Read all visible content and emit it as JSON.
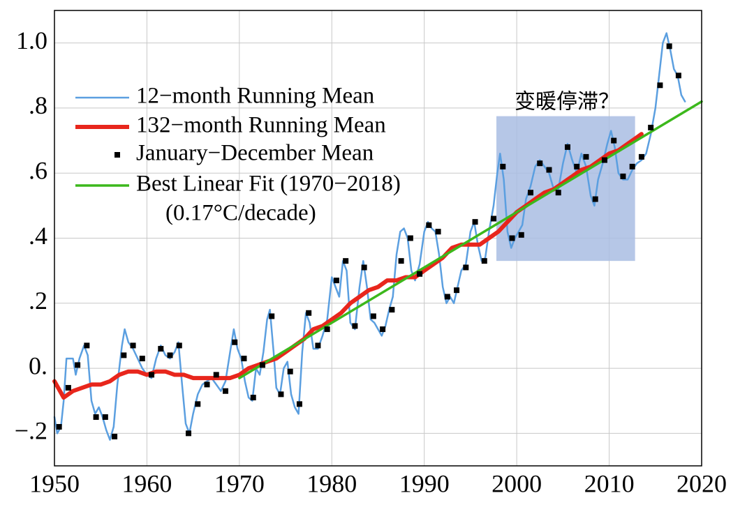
{
  "chart_data": {
    "type": "line",
    "xlim": [
      1950,
      2020
    ],
    "xticks": [
      1950,
      1960,
      1970,
      1980,
      1990,
      2000,
      2010,
      2020
    ],
    "ylim": [
      -0.3,
      1.1
    ],
    "yticks": [
      {
        "value": -0.2,
        "label": "−.2"
      },
      {
        "value": 0,
        "label": "0."
      },
      {
        "value": 0.2,
        "label": ".2"
      },
      {
        "value": 0.4,
        "label": ".4"
      },
      {
        "value": 0.6,
        "label": ".6"
      },
      {
        "value": 0.8,
        "label": ".8"
      },
      {
        "value": 1.0,
        "label": "1.0"
      }
    ],
    "grid": true,
    "legend_position": "upper left",
    "highlight": {
      "x": [
        1997.8,
        2012.8
      ],
      "y": [
        0.33,
        0.775
      ],
      "color": "#a9bde3"
    },
    "annotations": [
      "变暖停滞？",
      "(0.17°C/decade)"
    ],
    "series": [
      {
        "name": "12−month Running Mean",
        "type": "line",
        "color": "#5b9fe0",
        "x": [
          1950.0,
          1950.3,
          1950.7,
          1951.0,
          1951.3,
          1951.7,
          1952.0,
          1952.3,
          1952.7,
          1953.2,
          1953.6,
          1954.0,
          1954.4,
          1954.8,
          1955.2,
          1955.6,
          1956.0,
          1956.4,
          1956.8,
          1957.3,
          1957.6,
          1958.0,
          1958.5,
          1959.0,
          1959.5,
          1960.0,
          1960.5,
          1961.0,
          1961.5,
          1962.0,
          1962.5,
          1963.0,
          1963.4,
          1963.8,
          1964.2,
          1964.6,
          1965.0,
          1965.5,
          1966.0,
          1966.5,
          1967.0,
          1967.5,
          1968.0,
          1968.5,
          1969.0,
          1969.4,
          1969.8,
          1970.2,
          1970.6,
          1971.0,
          1971.4,
          1971.8,
          1972.2,
          1972.6,
          1973.0,
          1973.3,
          1973.7,
          1974.0,
          1974.4,
          1974.8,
          1975.2,
          1975.6,
          1976.0,
          1976.4,
          1976.8,
          1977.2,
          1977.6,
          1978.0,
          1978.5,
          1979.0,
          1979.5,
          1980.0,
          1980.4,
          1980.8,
          1981.2,
          1981.6,
          1982.0,
          1982.5,
          1983.0,
          1983.4,
          1983.8,
          1984.2,
          1984.6,
          1985.0,
          1985.4,
          1985.8,
          1986.2,
          1986.6,
          1987.0,
          1987.4,
          1987.8,
          1988.2,
          1988.6,
          1989.0,
          1989.5,
          1990.0,
          1990.4,
          1990.8,
          1991.2,
          1991.6,
          1992.0,
          1992.4,
          1992.8,
          1993.2,
          1993.6,
          1994.0,
          1994.5,
          1995.0,
          1995.4,
          1995.8,
          1996.2,
          1996.6,
          1997.0,
          1997.5,
          1997.9,
          1998.2,
          1998.6,
          1999.0,
          1999.4,
          1999.8,
          2000.2,
          2000.6,
          2001.0,
          2001.5,
          2002.0,
          2002.5,
          2003.0,
          2003.5,
          2004.0,
          2004.5,
          2005.0,
          2005.5,
          2006.0,
          2006.5,
          2007.0,
          2007.5,
          2008.0,
          2008.4,
          2008.8,
          2009.3,
          2009.8,
          2010.2,
          2010.6,
          2011.0,
          2011.5,
          2012.0,
          2012.5,
          2013.0,
          2013.5,
          2014.0,
          2014.5,
          2015.0,
          2015.4,
          2015.8,
          2016.2,
          2016.6,
          2017.0,
          2017.4,
          2017.8,
          2018.2
        ],
        "values": [
          -0.15,
          -0.2,
          -0.18,
          -0.1,
          0.03,
          0.03,
          0.03,
          -0.02,
          0.03,
          0.07,
          0.04,
          -0.1,
          -0.14,
          -0.12,
          -0.15,
          -0.19,
          -0.22,
          -0.18,
          -0.05,
          0.07,
          0.12,
          0.08,
          0.06,
          0.03,
          0.0,
          -0.02,
          -0.03,
          0.03,
          0.07,
          0.04,
          0.03,
          0.05,
          0.08,
          -0.05,
          -0.17,
          -0.2,
          -0.14,
          -0.08,
          -0.05,
          -0.04,
          -0.03,
          -0.05,
          -0.07,
          -0.04,
          0.05,
          0.12,
          0.06,
          0.03,
          -0.04,
          -0.09,
          -0.1,
          0.0,
          -0.02,
          0.05,
          0.15,
          0.18,
          0.05,
          -0.06,
          -0.08,
          0.0,
          0.02,
          -0.08,
          -0.12,
          -0.14,
          0.05,
          0.17,
          0.14,
          0.06,
          0.06,
          0.1,
          0.15,
          0.28,
          0.25,
          0.22,
          0.33,
          0.3,
          0.14,
          0.12,
          0.25,
          0.33,
          0.25,
          0.15,
          0.14,
          0.12,
          0.1,
          0.13,
          0.18,
          0.22,
          0.35,
          0.42,
          0.43,
          0.4,
          0.3,
          0.27,
          0.32,
          0.42,
          0.45,
          0.43,
          0.42,
          0.35,
          0.25,
          0.2,
          0.22,
          0.2,
          0.25,
          0.3,
          0.32,
          0.42,
          0.45,
          0.38,
          0.33,
          0.34,
          0.42,
          0.5,
          0.6,
          0.66,
          0.58,
          0.42,
          0.37,
          0.4,
          0.42,
          0.44,
          0.52,
          0.56,
          0.62,
          0.64,
          0.62,
          0.6,
          0.55,
          0.55,
          0.63,
          0.69,
          0.64,
          0.6,
          0.66,
          0.62,
          0.53,
          0.5,
          0.58,
          0.63,
          0.69,
          0.73,
          0.68,
          0.6,
          0.58,
          0.58,
          0.61,
          0.63,
          0.64,
          0.66,
          0.72,
          0.8,
          0.9,
          1.0,
          1.03,
          0.98,
          0.92,
          0.9,
          0.84,
          0.82
        ]
      },
      {
        "name": "132−month Running Mean",
        "type": "line",
        "color": "#e8261c",
        "x": [
          1950,
          1951,
          1952,
          1953,
          1954,
          1955,
          1956,
          1957,
          1958,
          1959,
          1960,
          1961,
          1962,
          1963,
          1964,
          1965,
          1966,
          1967,
          1968,
          1969,
          1970,
          1971,
          1972,
          1973,
          1974,
          1975,
          1976,
          1977,
          1978,
          1979,
          1980,
          1981,
          1982,
          1983,
          1984,
          1985,
          1986,
          1987,
          1988,
          1989,
          1990,
          1991,
          1992,
          1993,
          1994,
          1995,
          1996,
          1997,
          1998,
          1999,
          2000,
          2001,
          2002,
          2003,
          2004,
          2005,
          2006,
          2007,
          2008,
          2009,
          2010,
          2011,
          2012,
          2013,
          2013.5
        ],
        "values": [
          -0.04,
          -0.09,
          -0.07,
          -0.06,
          -0.05,
          -0.05,
          -0.04,
          -0.02,
          -0.01,
          -0.01,
          -0.02,
          -0.01,
          -0.01,
          -0.02,
          -0.02,
          -0.03,
          -0.03,
          -0.03,
          -0.03,
          -0.03,
          -0.02,
          0.0,
          0.01,
          0.02,
          0.03,
          0.05,
          0.07,
          0.09,
          0.12,
          0.13,
          0.15,
          0.17,
          0.2,
          0.22,
          0.24,
          0.25,
          0.27,
          0.27,
          0.28,
          0.28,
          0.3,
          0.32,
          0.34,
          0.37,
          0.38,
          0.38,
          0.38,
          0.4,
          0.42,
          0.45,
          0.48,
          0.5,
          0.52,
          0.54,
          0.55,
          0.57,
          0.59,
          0.61,
          0.62,
          0.64,
          0.66,
          0.67,
          0.69,
          0.71,
          0.72
        ]
      },
      {
        "name": "January−December Mean",
        "type": "scatter",
        "color": "#000000",
        "x": [
          1950.5,
          1951.5,
          1952.5,
          1953.5,
          1954.5,
          1955.5,
          1956.5,
          1957.5,
          1958.5,
          1959.5,
          1960.5,
          1961.5,
          1962.5,
          1963.5,
          1964.5,
          1965.5,
          1966.5,
          1967.5,
          1968.5,
          1969.5,
          1970.5,
          1971.5,
          1972.5,
          1973.5,
          1974.5,
          1975.5,
          1976.5,
          1977.5,
          1978.5,
          1979.5,
          1980.5,
          1981.5,
          1982.5,
          1983.5,
          1984.5,
          1985.5,
          1986.5,
          1987.5,
          1988.5,
          1989.5,
          1990.5,
          1991.5,
          1992.5,
          1993.5,
          1994.5,
          1995.5,
          1996.5,
          1997.5,
          1998.5,
          1999.5,
          2000.5,
          2001.5,
          2002.5,
          2003.5,
          2004.5,
          2005.5,
          2006.5,
          2007.5,
          2008.5,
          2009.5,
          2010.5,
          2011.5,
          2012.5,
          2013.5,
          2014.5,
          2015.5,
          2016.5,
          2017.5
        ],
        "values": [
          -0.18,
          -0.06,
          0.01,
          0.07,
          -0.15,
          -0.15,
          -0.21,
          0.04,
          0.07,
          0.03,
          -0.02,
          0.06,
          0.04,
          0.07,
          -0.2,
          -0.11,
          -0.05,
          -0.02,
          -0.07,
          0.08,
          0.03,
          -0.09,
          0.01,
          0.16,
          -0.08,
          -0.01,
          -0.11,
          0.17,
          0.07,
          0.12,
          0.27,
          0.33,
          0.13,
          0.31,
          0.16,
          0.12,
          0.18,
          0.33,
          0.4,
          0.29,
          0.44,
          0.42,
          0.22,
          0.24,
          0.31,
          0.45,
          0.33,
          0.46,
          0.62,
          0.4,
          0.41,
          0.54,
          0.63,
          0.61,
          0.54,
          0.68,
          0.62,
          0.65,
          0.52,
          0.64,
          0.7,
          0.59,
          0.62,
          0.65,
          0.74,
          0.87,
          0.99,
          0.9
        ]
      },
      {
        "name": "Best Linear Fit (1970−2018)",
        "type": "line",
        "color": "#3cb81c",
        "x": [
          1970,
          2020
        ],
        "values": [
          -0.03,
          0.82
        ]
      }
    ]
  }
}
